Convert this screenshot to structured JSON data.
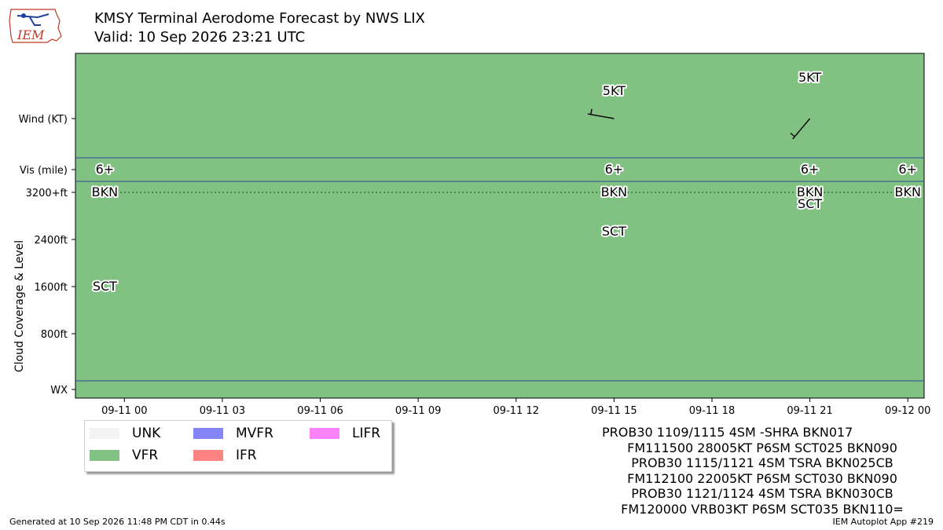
{
  "header": {
    "title": "KMSY Terminal Aerodome Forecast by NWS LIX",
    "subtitle": "Valid: 10 Sep 2026 23:21 UTC",
    "logo_text": "IEM"
  },
  "chart_data": {
    "type": "timeline",
    "x_range_hours": [
      -1.5,
      24.5
    ],
    "x_ticks": [
      {
        "h": 0,
        "label": "09-11 00"
      },
      {
        "h": 3,
        "label": "09-11 03"
      },
      {
        "h": 6,
        "label": "09-11 06"
      },
      {
        "h": 9,
        "label": "09-11 09"
      },
      {
        "h": 12,
        "label": "09-11 12"
      },
      {
        "h": 15,
        "label": "09-11 15"
      },
      {
        "h": 18,
        "label": "09-11 18"
      },
      {
        "h": 21,
        "label": "09-11 21"
      },
      {
        "h": 24,
        "label": "09-12 00"
      }
    ],
    "y_range": [
      -400,
      5800
    ],
    "y_ticks": [
      {
        "v": 800,
        "label": "800ft"
      },
      {
        "v": 1600,
        "label": "1600ft"
      },
      {
        "v": 2400,
        "label": "2400ft"
      },
      {
        "v": 3200,
        "label": "3200+ft"
      },
      {
        "v": 3600,
        "label": "Vis (mile)"
      },
      {
        "v": 4500,
        "label": "Wind (KT)"
      },
      {
        "v": -400,
        "label": "WX"
      }
    ],
    "ylabel": "Cloud Coverage & Level",
    "band_boundaries": [
      -250,
      3400,
      3800
    ],
    "background_category": "VFR",
    "cloud_ceiling_line": 3200,
    "wind": [
      {
        "h": 15,
        "dir_deg": 280,
        "speed_kt": 5,
        "label": "5KT"
      },
      {
        "h": 21,
        "dir_deg": 220,
        "speed_kt": 5,
        "label": "5KT"
      }
    ],
    "visibility": [
      {
        "h": -0.6,
        "label": "6+"
      },
      {
        "h": 15,
        "label": "6+"
      },
      {
        "h": 21,
        "label": "6+"
      },
      {
        "h": 24,
        "label": "6+"
      }
    ],
    "clouds": [
      {
        "h": -0.6,
        "level": 3200,
        "cover": "BKN"
      },
      {
        "h": -0.6,
        "level": 1500,
        "cover": "SCT"
      },
      {
        "h": 15,
        "level": 3200,
        "cover": "BKN"
      },
      {
        "h": 15,
        "level": 2500,
        "cover": "SCT"
      },
      {
        "h": 21,
        "level": 3200,
        "cover": "BKN"
      },
      {
        "h": 21,
        "level": 3000,
        "cover": "SCT"
      },
      {
        "h": 24,
        "level": 3200,
        "cover": "BKN"
      }
    ],
    "legend": [
      {
        "label": "UNK",
        "color": "#f3f3f3"
      },
      {
        "label": "VFR",
        "color": "#81c283"
      },
      {
        "label": "MVFR",
        "color": "#8585fb"
      },
      {
        "label": "IFR",
        "color": "#fd8383"
      },
      {
        "label": "LIFR",
        "color": "#fd83fd"
      }
    ],
    "colors": {
      "vfr": "#81c283",
      "band_line": "#2f46a0"
    }
  },
  "taf_text": [
    "PROB30 1109/1115 4SM -SHRA BKN017",
    "FM111500 28005KT P6SM SCT025 BKN090",
    "PROB30 1115/1121 4SM TSRA BKN025CB",
    "FM112100 22005KT P6SM SCT030 BKN090",
    "PROB30 1121/1124 4SM TSRA BKN030CB",
    "FM120000 VRB03KT P6SM SCT035 BKN110="
  ],
  "footer": {
    "left": "Generated at 10 Sep 2026 11:48 PM CDT in 0.44s",
    "right": "IEM Autoplot App #219"
  }
}
